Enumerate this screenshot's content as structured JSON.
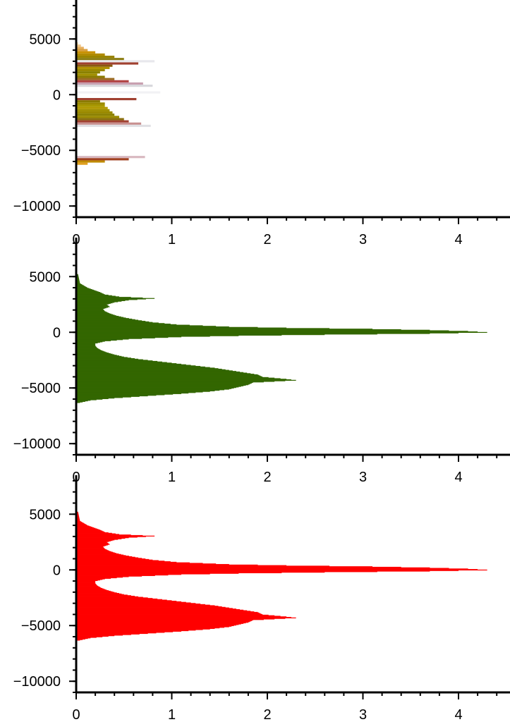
{
  "chart_data": [
    {
      "type": "bar",
      "orientation": "horizontal",
      "panel": "top",
      "series": [
        {
          "name": "",
          "color": "#c8a000"
        }
      ],
      "fill_style": "colored horizontal bins (gold / olive / maroon / white-ish, per-bin color)",
      "bins": [
        {
          "y": 4600,
          "value": 0.02,
          "color": "#f6e0b0"
        },
        {
          "y": 4400,
          "value": 0.05,
          "color": "#f3c98a"
        },
        {
          "y": 4200,
          "value": 0.08,
          "color": "#e8b060"
        },
        {
          "y": 4000,
          "value": 0.12,
          "color": "#d9a040"
        },
        {
          "y": 3800,
          "value": 0.2,
          "color": "#c89000"
        },
        {
          "y": 3600,
          "value": 0.3,
          "color": "#b08a00"
        },
        {
          "y": 3400,
          "value": 0.4,
          "color": "#9a8400"
        },
        {
          "y": 3200,
          "value": 0.5,
          "color": "#8a7c10"
        },
        {
          "y": 3000,
          "value": 0.82,
          "color": "#e8e8ec"
        },
        {
          "y": 2800,
          "value": 0.65,
          "color": "#a04030"
        },
        {
          "y": 2600,
          "value": 0.38,
          "color": "#8a5a10"
        },
        {
          "y": 2400,
          "value": 0.35,
          "color": "#b09000"
        },
        {
          "y": 2200,
          "value": 0.3,
          "color": "#9a8800"
        },
        {
          "y": 2000,
          "value": 0.25,
          "color": "#8a8000"
        },
        {
          "y": 1800,
          "value": 0.22,
          "color": "#a09000"
        },
        {
          "y": 1600,
          "value": 0.3,
          "color": "#8a7a00"
        },
        {
          "y": 1400,
          "value": 0.4,
          "color": "#9a6a20"
        },
        {
          "y": 1200,
          "value": 0.55,
          "color": "#b04040"
        },
        {
          "y": 1000,
          "value": 0.7,
          "color": "#c8a0b0"
        },
        {
          "y": 800,
          "value": 0.8,
          "color": "#d8d8dc"
        },
        {
          "y": 200,
          "value": 0.88,
          "color": "#f2f2f4"
        },
        {
          "y": -400,
          "value": 0.63,
          "color": "#a04030"
        },
        {
          "y": -600,
          "value": 0.25,
          "color": "#8a7a00"
        },
        {
          "y": -800,
          "value": 0.3,
          "color": "#9a8a00"
        },
        {
          "y": -1000,
          "value": 0.3,
          "color": "#a89800"
        },
        {
          "y": -1200,
          "value": 0.33,
          "color": "#b09800"
        },
        {
          "y": -1400,
          "value": 0.35,
          "color": "#a09000"
        },
        {
          "y": -1600,
          "value": 0.38,
          "color": "#9a8a00"
        },
        {
          "y": -1800,
          "value": 0.4,
          "color": "#8a8000"
        },
        {
          "y": -2000,
          "value": 0.45,
          "color": "#9a8a00"
        },
        {
          "y": -2200,
          "value": 0.5,
          "color": "#8a7010"
        },
        {
          "y": -2400,
          "value": 0.55,
          "color": "#a04030"
        },
        {
          "y": -2600,
          "value": 0.68,
          "color": "#c89090"
        },
        {
          "y": -2800,
          "value": 0.78,
          "color": "#e0e0e4"
        },
        {
          "y": -5600,
          "value": 0.72,
          "color": "#d8b8c0"
        },
        {
          "y": -5800,
          "value": 0.55,
          "color": "#a04020"
        },
        {
          "y": -6000,
          "value": 0.3,
          "color": "#c08a00"
        },
        {
          "y": -6200,
          "value": 0.12,
          "color": "#e0a020"
        }
      ],
      "xlim": [
        0,
        4.5
      ],
      "ylim": [
        -11000,
        8500
      ],
      "xticks": [
        0,
        1,
        2,
        3,
        4
      ],
      "yticks": [
        -10000,
        -5000,
        0,
        5000
      ],
      "xticklabels": [
        "0",
        "1",
        "2",
        "3",
        "4"
      ],
      "yticklabels": [
        "−10000",
        "−5000",
        "0",
        "5000"
      ],
      "xlabel": "",
      "ylabel": "",
      "title": ""
    },
    {
      "type": "bar",
      "orientation": "horizontal",
      "panel": "middle",
      "series": [
        {
          "name": "",
          "color": "#336600"
        }
      ],
      "profile": [
        [
          5200,
          0.02
        ],
        [
          4800,
          0.03
        ],
        [
          4400,
          0.04
        ],
        [
          4000,
          0.12
        ],
        [
          3600,
          0.25
        ],
        [
          3400,
          0.3
        ],
        [
          3200,
          0.45
        ],
        [
          3050,
          0.82
        ],
        [
          2900,
          0.55
        ],
        [
          2700,
          0.4
        ],
        [
          2500,
          0.32
        ],
        [
          2300,
          0.35
        ],
        [
          2100,
          0.28
        ],
        [
          1900,
          0.3
        ],
        [
          1700,
          0.35
        ],
        [
          1500,
          0.42
        ],
        [
          1300,
          0.52
        ],
        [
          1100,
          0.65
        ],
        [
          900,
          0.8
        ],
        [
          700,
          1.05
        ],
        [
          500,
          1.6
        ],
        [
          400,
          2.2
        ],
        [
          300,
          3.1
        ],
        [
          200,
          3.7
        ],
        [
          100,
          4.1
        ],
        [
          0,
          4.3
        ],
        [
          -100,
          3.7
        ],
        [
          -200,
          2.6
        ],
        [
          -300,
          1.7
        ],
        [
          -400,
          1.1
        ],
        [
          -600,
          0.55
        ],
        [
          -800,
          0.3
        ],
        [
          -1000,
          0.2
        ],
        [
          -1200,
          0.2
        ],
        [
          -1400,
          0.22
        ],
        [
          -1600,
          0.26
        ],
        [
          -1800,
          0.32
        ],
        [
          -2000,
          0.4
        ],
        [
          -2200,
          0.5
        ],
        [
          -2400,
          0.65
        ],
        [
          -2600,
          0.85
        ],
        [
          -2800,
          1.05
        ],
        [
          -3000,
          1.25
        ],
        [
          -3200,
          1.45
        ],
        [
          -3400,
          1.6
        ],
        [
          -3600,
          1.75
        ],
        [
          -3800,
          1.9
        ],
        [
          -4000,
          1.95
        ],
        [
          -4200,
          2.2
        ],
        [
          -4300,
          2.3
        ],
        [
          -4500,
          1.85
        ],
        [
          -4700,
          1.8
        ],
        [
          -4900,
          1.7
        ],
        [
          -5100,
          1.6
        ],
        [
          -5300,
          1.4
        ],
        [
          -5500,
          1.1
        ],
        [
          -5700,
          0.75
        ],
        [
          -5900,
          0.4
        ],
        [
          -6100,
          0.15
        ],
        [
          -6300,
          0.04
        ]
      ],
      "xlim": [
        0,
        4.5
      ],
      "ylim": [
        -11000,
        8500
      ],
      "xticks": [
        0,
        1,
        2,
        3,
        4
      ],
      "yticks": [
        -10000,
        -5000,
        0,
        5000
      ],
      "xticklabels": [
        "0",
        "1",
        "2",
        "3",
        "4"
      ],
      "yticklabels": [
        "−10000",
        "−5000",
        "0",
        "5000"
      ],
      "xlabel": "",
      "ylabel": "",
      "title": ""
    },
    {
      "type": "bar",
      "orientation": "horizontal",
      "panel": "bottom",
      "series": [
        {
          "name": "",
          "color": "#ff0000"
        }
      ],
      "profile": [
        [
          5200,
          0.02
        ],
        [
          4800,
          0.03
        ],
        [
          4400,
          0.04
        ],
        [
          4000,
          0.12
        ],
        [
          3600,
          0.25
        ],
        [
          3400,
          0.3
        ],
        [
          3200,
          0.45
        ],
        [
          3050,
          0.82
        ],
        [
          2900,
          0.55
        ],
        [
          2700,
          0.4
        ],
        [
          2500,
          0.32
        ],
        [
          2300,
          0.35
        ],
        [
          2100,
          0.28
        ],
        [
          1900,
          0.3
        ],
        [
          1700,
          0.35
        ],
        [
          1500,
          0.42
        ],
        [
          1300,
          0.52
        ],
        [
          1100,
          0.65
        ],
        [
          900,
          0.8
        ],
        [
          700,
          1.05
        ],
        [
          500,
          1.6
        ],
        [
          400,
          2.2
        ],
        [
          300,
          3.1
        ],
        [
          200,
          3.7
        ],
        [
          100,
          4.1
        ],
        [
          0,
          4.3
        ],
        [
          -100,
          3.7
        ],
        [
          -200,
          2.6
        ],
        [
          -300,
          1.7
        ],
        [
          -400,
          1.1
        ],
        [
          -600,
          0.55
        ],
        [
          -800,
          0.3
        ],
        [
          -1000,
          0.2
        ],
        [
          -1200,
          0.2
        ],
        [
          -1400,
          0.22
        ],
        [
          -1600,
          0.26
        ],
        [
          -1800,
          0.32
        ],
        [
          -2000,
          0.4
        ],
        [
          -2200,
          0.5
        ],
        [
          -2400,
          0.65
        ],
        [
          -2600,
          0.85
        ],
        [
          -2800,
          1.05
        ],
        [
          -3000,
          1.25
        ],
        [
          -3200,
          1.45
        ],
        [
          -3400,
          1.6
        ],
        [
          -3600,
          1.75
        ],
        [
          -3800,
          1.9
        ],
        [
          -4000,
          1.95
        ],
        [
          -4200,
          2.2
        ],
        [
          -4300,
          2.3
        ],
        [
          -4500,
          1.85
        ],
        [
          -4700,
          1.8
        ],
        [
          -4900,
          1.7
        ],
        [
          -5100,
          1.6
        ],
        [
          -5300,
          1.4
        ],
        [
          -5500,
          1.1
        ],
        [
          -5700,
          0.75
        ],
        [
          -5900,
          0.4
        ],
        [
          -6100,
          0.15
        ],
        [
          -6300,
          0.04
        ]
      ],
      "xlim": [
        0,
        4.5
      ],
      "ylim": [
        -11000,
        8500
      ],
      "xticks": [
        0,
        1,
        2,
        3,
        4
      ],
      "yticks": [
        -10000,
        -5000,
        0,
        5000
      ],
      "xticklabels": [
        "0",
        "1",
        "2",
        "3",
        "4"
      ],
      "yticklabels": [
        "−10000",
        "−5000",
        "0",
        "5000"
      ],
      "xlabel": "",
      "ylabel": "",
      "title": ""
    }
  ]
}
